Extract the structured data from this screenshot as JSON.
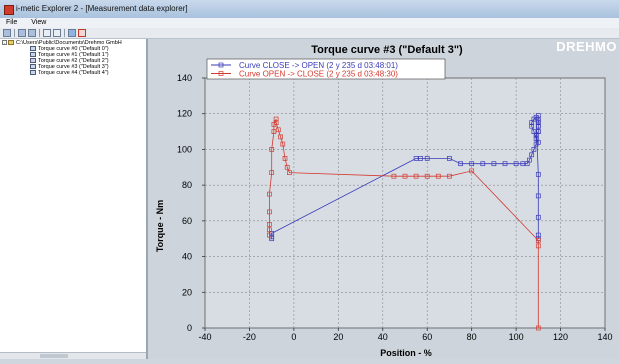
{
  "window": {
    "title": "i-metic Explorer 2 - [Measurement data explorer]"
  },
  "menu": [
    "File",
    "View"
  ],
  "toolbar": {
    "icons": [
      "open-icon",
      "save-icon",
      "save-all-icon",
      "tree-icon",
      "filter-icon",
      "export-icon",
      "check-icon"
    ]
  },
  "tree": {
    "root": "C:\\Users\\Public\\Documents\\Drehmo GmbH",
    "items": [
      "Torque curve #0 (\"Default 0\")",
      "Torque curve #1 (\"Default 1\")",
      "Torque curve #2 (\"Default 2\")",
      "Torque curve #3 (\"Default 3\")",
      "Torque curve #4 (\"Default 4\")"
    ]
  },
  "brand": "DREHMO",
  "colors": {
    "close_open": "#3a3ab8",
    "open_close": "#d43a30",
    "plot_bg": "#d7dde3",
    "panel_bg": "#cdd4dc"
  },
  "chart_data": {
    "type": "line",
    "title": "Torque curve #3 (\"Default 3\")",
    "xlabel": "Position - %",
    "ylabel": "Torque - Nm",
    "xlim": [
      -40,
      140
    ],
    "ylim": [
      0,
      140
    ],
    "xticks": [
      -40,
      -20,
      0,
      20,
      40,
      60,
      80,
      100,
      120,
      140
    ],
    "yticks": [
      0,
      20,
      40,
      60,
      80,
      100,
      120,
      140
    ],
    "grid": true,
    "legend": "top-left",
    "series": [
      {
        "name": "Curve CLOSE -> OPEN (2 y 235 d 03:48:01)",
        "color": "#3a3ab8",
        "x": [
          -10,
          -10,
          -10,
          55,
          57,
          60,
          70,
          75,
          80,
          85,
          90,
          95,
          100,
          103,
          105,
          106,
          107,
          108,
          109,
          109,
          110,
          110,
          110,
          110,
          110,
          110,
          110,
          110,
          110,
          109,
          108,
          107,
          107,
          108,
          109,
          110,
          110,
          110,
          110,
          110
        ],
        "y": [
          50,
          51,
          53,
          95,
          95,
          95,
          95,
          92,
          92,
          92,
          92,
          92,
          92,
          92,
          92,
          94,
          97,
          100,
          103,
          108,
          110,
          113,
          115,
          117,
          119,
          116,
          113,
          110,
          104,
          106,
          110,
          113,
          115,
          117,
          118,
          86,
          74,
          62,
          52,
          50
        ]
      },
      {
        "name": "Curve OPEN -> CLOSE (2 y 235 d 03:48:30)",
        "color": "#d43a30",
        "x": [
          -11,
          -11,
          -11,
          -11,
          -11,
          -10,
          -10,
          -9,
          -9,
          -8,
          -8,
          -7,
          -6,
          -5,
          -4,
          -3,
          -2,
          45,
          50,
          55,
          60,
          65,
          70,
          80,
          110,
          110,
          110
        ],
        "y": [
          52,
          55,
          58,
          65,
          75,
          87,
          100,
          110,
          114,
          117,
          115,
          111,
          107,
          103,
          95,
          90,
          87,
          85,
          85,
          85,
          85,
          85,
          85,
          88,
          49,
          46,
          0
        ]
      }
    ]
  }
}
